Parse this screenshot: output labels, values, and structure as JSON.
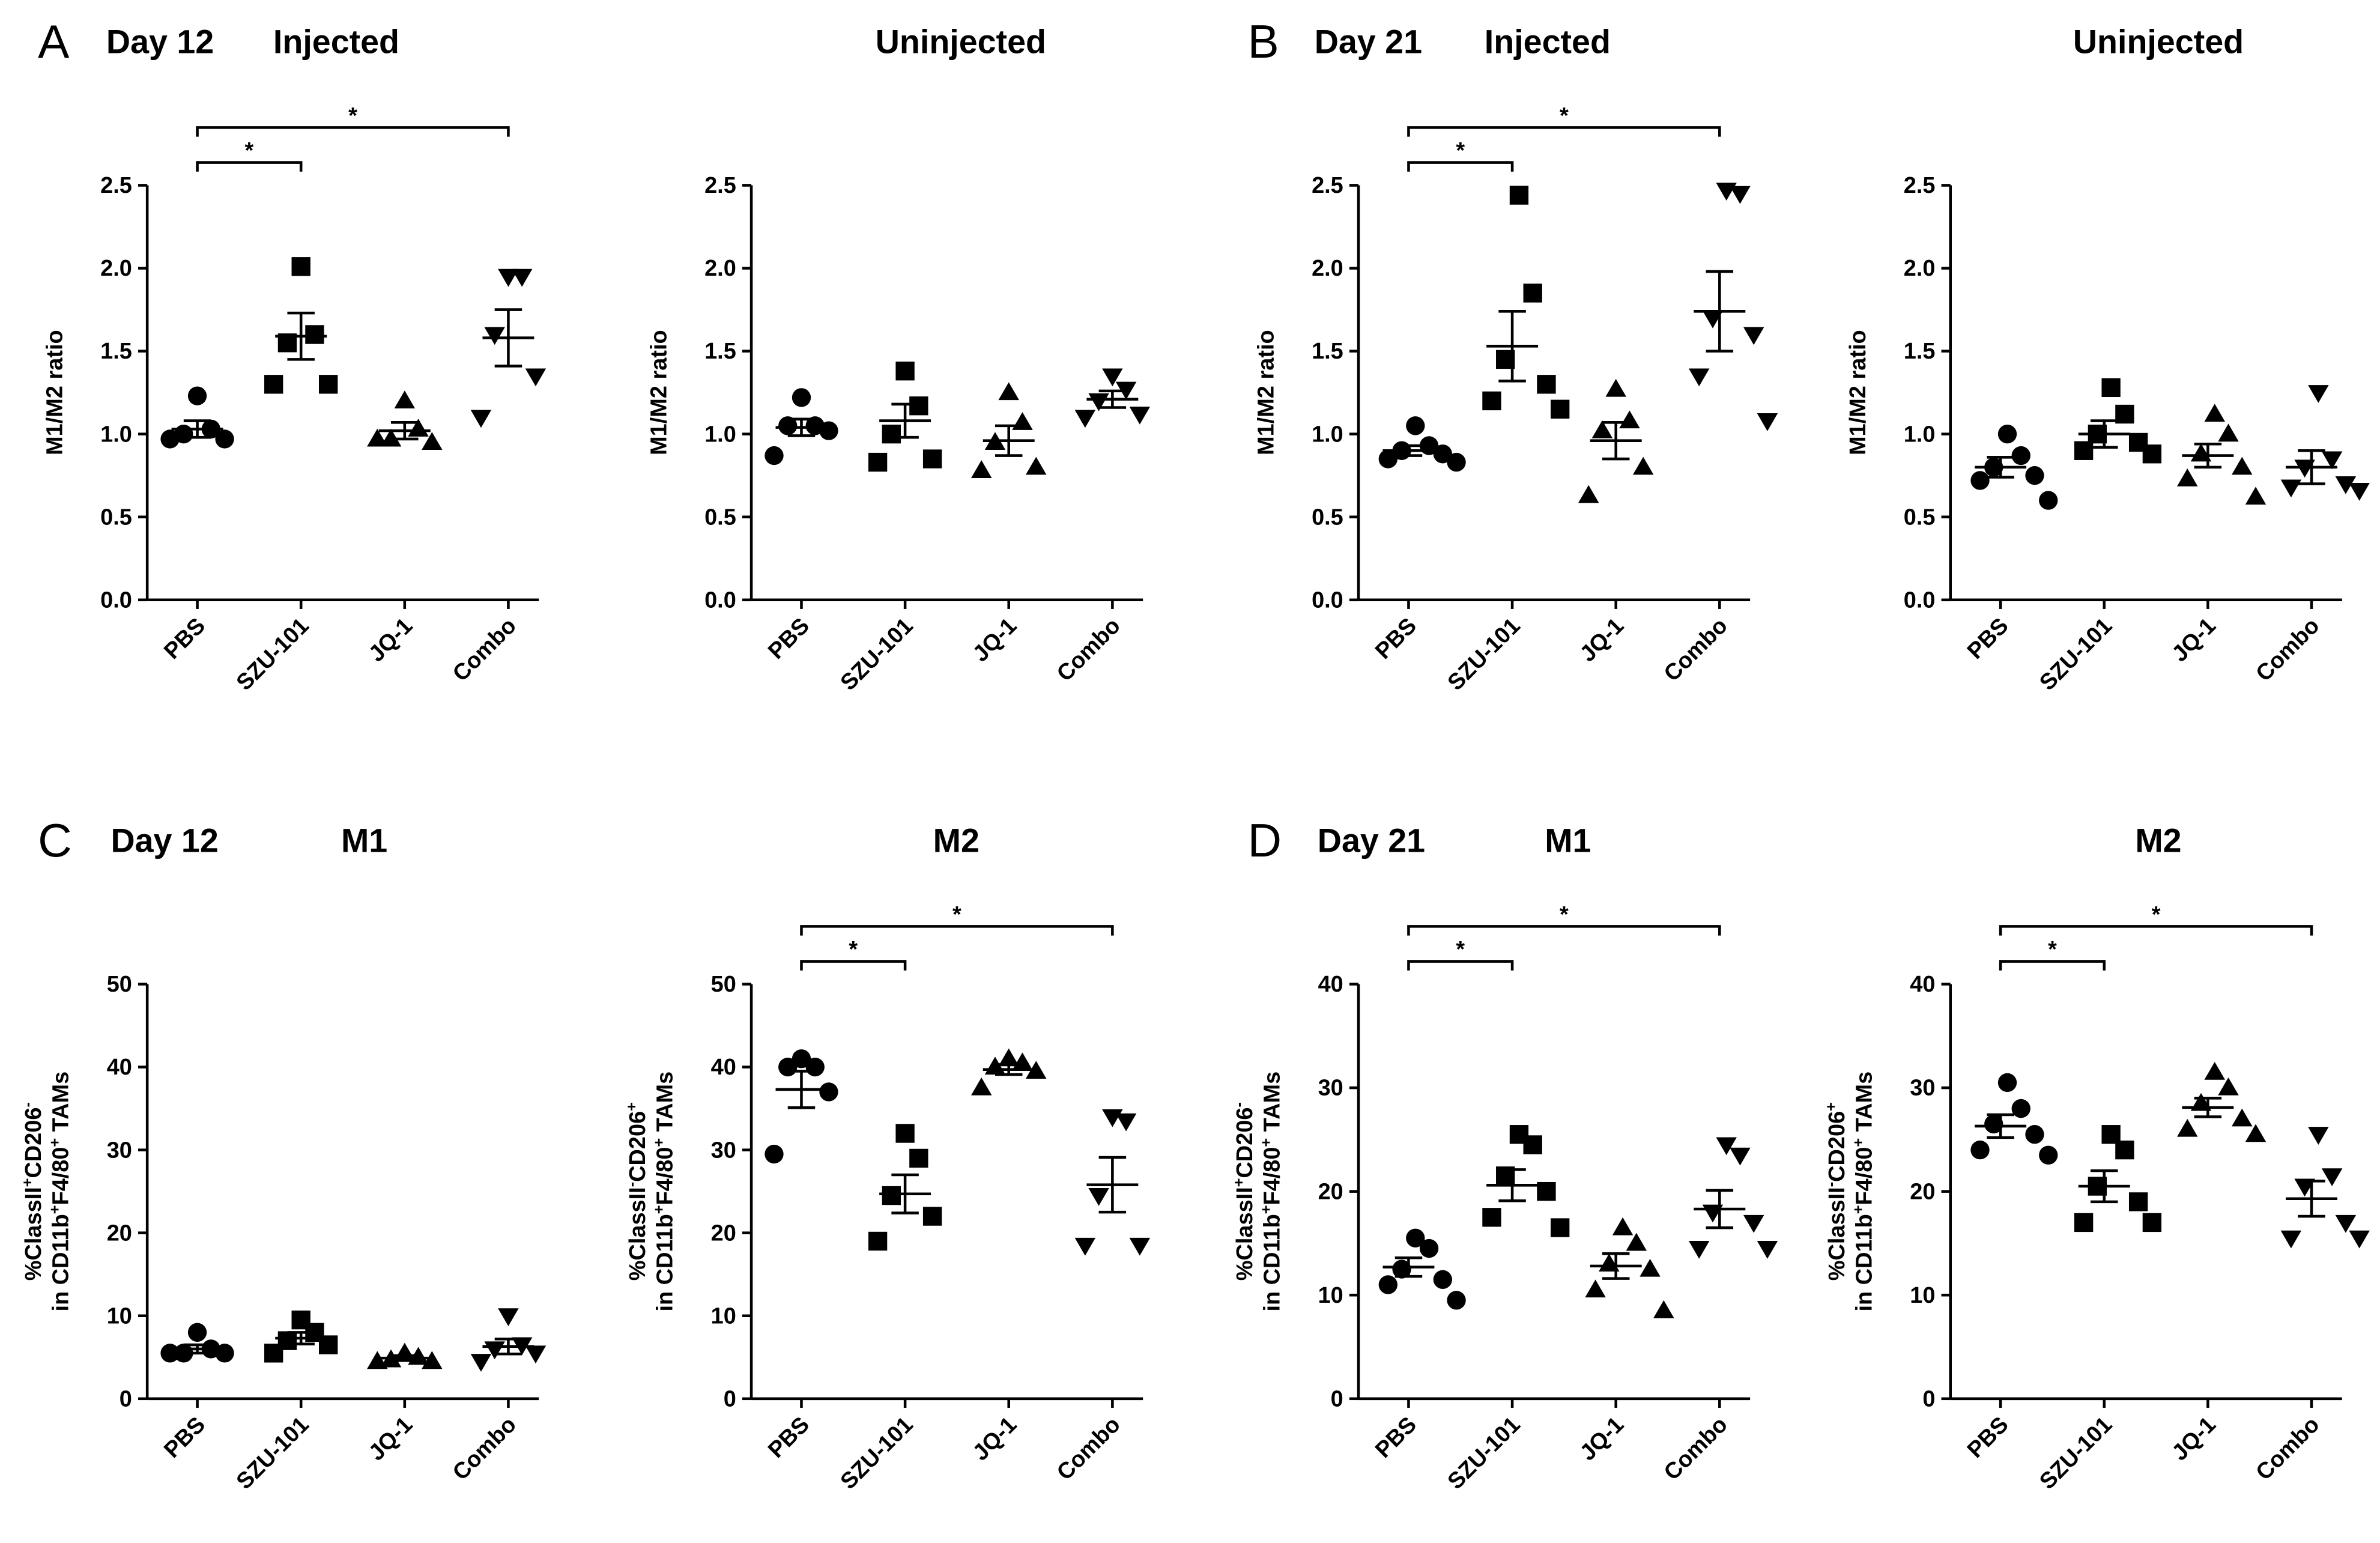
{
  "chart_data": [
    {
      "type": "dotplot",
      "panel": "A",
      "day": "Day 12",
      "title": "Injected",
      "ylabel": [
        [
          "M1/M2 ratio"
        ]
      ],
      "categories": [
        "PBS",
        "SZU-101",
        "JQ-1",
        "Combo"
      ],
      "markers": [
        "circle",
        "square",
        "triangle",
        "triangle-down"
      ],
      "color": "#000000",
      "values": [
        [
          1.23,
          1.03,
          1.0,
          0.97,
          0.97
        ],
        [
          2.01,
          1.6,
          1.55,
          1.3,
          1.3
        ],
        [
          1.2,
          1.03,
          0.97,
          0.95,
          0.97
        ],
        [
          1.95,
          1.95,
          1.6,
          1.35,
          1.1
        ]
      ],
      "means": [
        1.03,
        1.59,
        1.02,
        1.58
      ],
      "errors": [
        0.05,
        0.14,
        0.05,
        0.17
      ],
      "ylim": [
        0,
        2.5
      ],
      "yticks": [
        {
          "value": 0,
          "label": "0.0"
        },
        0.5,
        {
          "value": 1,
          "label": "1.0"
        },
        1.5,
        {
          "value": 2,
          "label": "2.0"
        },
        2.5
      ],
      "brackets": [
        {
          "from": 0,
          "to": 1,
          "label": "*"
        },
        {
          "from": 0,
          "to": 3,
          "label": "*"
        }
      ]
    },
    {
      "type": "dotplot",
      "title": "Uninjected",
      "ylabel": [
        [
          "M1/M2 ratio"
        ]
      ],
      "categories": [
        "PBS",
        "SZU-101",
        "JQ-1",
        "Combo"
      ],
      "markers": [
        "circle",
        "square",
        "triangle",
        "triangle-down"
      ],
      "color": "#000000",
      "values": [
        [
          1.22,
          1.05,
          1.05,
          1.02,
          0.87
        ],
        [
          1.38,
          1.17,
          1.0,
          0.85,
          0.83
        ],
        [
          1.25,
          1.07,
          0.95,
          0.8,
          0.78
        ],
        [
          1.35,
          1.27,
          1.2,
          1.12,
          1.1
        ]
      ],
      "means": [
        1.04,
        1.08,
        0.96,
        1.21
      ],
      "errors": [
        0.05,
        0.1,
        0.09,
        0.05
      ],
      "ylim": [
        0,
        2.5
      ],
      "yticks": [
        {
          "value": 0,
          "label": "0.0"
        },
        0.5,
        {
          "value": 1,
          "label": "1.0"
        },
        1.5,
        {
          "value": 2,
          "label": "2.0"
        },
        2.5
      ],
      "brackets": []
    },
    {
      "type": "dotplot",
      "panel": "B",
      "day": "Day 21",
      "title": "Injected",
      "ylabel": [
        [
          "M1/M2 ratio"
        ]
      ],
      "categories": [
        "PBS",
        "SZU-101",
        "JQ-1",
        "Combo"
      ],
      "markers": [
        "circle",
        "square",
        "triangle",
        "triangle-down"
      ],
      "color": "#000000",
      "values": [
        [
          1.05,
          0.93,
          0.9,
          0.88,
          0.85,
          0.83
        ],
        [
          2.44,
          1.85,
          1.45,
          1.3,
          1.2,
          1.15
        ],
        [
          1.27,
          1.08,
          1.02,
          0.8,
          0.63
        ],
        [
          2.47,
          2.45,
          1.7,
          1.6,
          1.35,
          1.08
        ]
      ],
      "means": [
        0.9,
        1.53,
        0.96,
        1.74
      ],
      "errors": [
        0.03,
        0.21,
        0.11,
        0.24
      ],
      "ylim": [
        0,
        2.5
      ],
      "yticks": [
        {
          "value": 0,
          "label": "0.0"
        },
        0.5,
        {
          "value": 1,
          "label": "1.0"
        },
        1.5,
        {
          "value": 2,
          "label": "2.0"
        },
        2.5
      ],
      "brackets": [
        {
          "from": 0,
          "to": 1,
          "label": "*"
        },
        {
          "from": 0,
          "to": 3,
          "label": "*"
        }
      ]
    },
    {
      "type": "dotplot",
      "title": "Uninjected",
      "ylabel": [
        [
          "M1/M2 ratio"
        ]
      ],
      "categories": [
        "PBS",
        "SZU-101",
        "JQ-1",
        "Combo"
      ],
      "markers": [
        "circle",
        "square",
        "triangle",
        "triangle-down"
      ],
      "color": "#000000",
      "values": [
        [
          1.0,
          0.87,
          0.8,
          0.75,
          0.72,
          0.6
        ],
        [
          1.28,
          1.12,
          1.0,
          0.95,
          0.9,
          0.88
        ],
        [
          1.12,
          1.0,
          0.88,
          0.8,
          0.73,
          0.62
        ],
        [
          1.25,
          0.85,
          0.8,
          0.7,
          0.68,
          0.66
        ]
      ],
      "means": [
        0.8,
        1.0,
        0.87,
        0.8
      ],
      "errors": [
        0.06,
        0.08,
        0.07,
        0.1
      ],
      "ylim": [
        0,
        2.5
      ],
      "yticks": [
        {
          "value": 0,
          "label": "0.0"
        },
        0.5,
        {
          "value": 1,
          "label": "1.0"
        },
        1.5,
        {
          "value": 2,
          "label": "2.0"
        },
        2.5
      ],
      "brackets": []
    },
    {
      "type": "dotplot",
      "panel": "C",
      "day": "Day 12",
      "title": "M1",
      "ylabel": [
        [
          "%ClassII",
          "+",
          "CD206",
          "-"
        ],
        [
          "in CD11b",
          "+",
          "F4/80",
          "+",
          " TAMs"
        ]
      ],
      "categories": [
        "PBS",
        "SZU-101",
        "JQ-1",
        "Combo"
      ],
      "markers": [
        "circle",
        "square",
        "triangle",
        "triangle-down"
      ],
      "color": "#000000",
      "values": [
        [
          8,
          6,
          5.5,
          5.5,
          5.5
        ],
        [
          9.5,
          8,
          7,
          6.5,
          5.5
        ],
        [
          5.5,
          5,
          4.7,
          4.5,
          4.5
        ],
        [
          10,
          6.5,
          6,
          5.5,
          4.5
        ]
      ],
      "means": [
        6,
        7.3,
        4.9,
        6.3
      ],
      "errors": [
        0.5,
        0.7,
        0.3,
        0.9
      ],
      "ylim": [
        0,
        50
      ],
      "yticks": [
        0,
        10,
        20,
        30,
        40,
        50
      ],
      "brackets": []
    },
    {
      "type": "dotplot",
      "title": "M2",
      "ylabel": [
        [
          "%ClassII",
          "-",
          "CD206",
          "+"
        ],
        [
          "in CD11b",
          "+",
          "F4/80",
          "+",
          " TAMs"
        ]
      ],
      "categories": [
        "PBS",
        "SZU-101",
        "JQ-1",
        "Combo"
      ],
      "markers": [
        "circle",
        "square",
        "triangle",
        "triangle-down"
      ],
      "color": "#000000",
      "values": [
        [
          41,
          40,
          40,
          37,
          29.5
        ],
        [
          32,
          29,
          24.5,
          22,
          19
        ],
        [
          41,
          40.5,
          40,
          39.5,
          37.5
        ],
        [
          34,
          33.5,
          24.5,
          18.5,
          18.5
        ]
      ],
      "means": [
        37.3,
        24.7,
        39.7,
        25.8
      ],
      "errors": [
        2.2,
        2.3,
        0.6,
        3.3
      ],
      "ylim": [
        0,
        50
      ],
      "yticks": [
        0,
        10,
        20,
        30,
        40,
        50
      ],
      "brackets": [
        {
          "from": 0,
          "to": 1,
          "label": "*"
        },
        {
          "from": 0,
          "to": 3,
          "label": "*"
        }
      ]
    },
    {
      "type": "dotplot",
      "panel": "D",
      "day": "Day 21",
      "title": "M1",
      "ylabel": [
        [
          "%ClassII",
          "+",
          "CD206",
          "-"
        ],
        [
          "in CD11b",
          "+",
          "F4/80",
          "+",
          " TAMs"
        ]
      ],
      "categories": [
        "PBS",
        "SZU-101",
        "JQ-1",
        "Combo"
      ],
      "markers": [
        "circle",
        "square",
        "triangle",
        "triangle-down"
      ],
      "color": "#000000",
      "values": [
        [
          15.5,
          14.5,
          12.5,
          11.5,
          11,
          9.5
        ],
        [
          25.5,
          24.5,
          21.5,
          20,
          17.5,
          16.5
        ],
        [
          16.5,
          15,
          13,
          12.5,
          10.5,
          8.5
        ],
        [
          24.5,
          23.5,
          18,
          17,
          14.5,
          14.5
        ]
      ],
      "means": [
        12.7,
        20.6,
        12.8,
        18.3
      ],
      "errors": [
        0.9,
        1.5,
        1.2,
        1.8
      ],
      "ylim": [
        0,
        40
      ],
      "yticks": [
        0,
        10,
        20,
        30,
        40
      ],
      "brackets": [
        {
          "from": 0,
          "to": 1,
          "label": "*"
        },
        {
          "from": 0,
          "to": 3,
          "label": "*"
        }
      ]
    },
    {
      "type": "dotplot",
      "title": "M2",
      "ylabel": [
        [
          "%ClassII",
          "-",
          "CD206",
          "+"
        ],
        [
          "in CD11b",
          "+",
          "F4/80",
          "+",
          " TAMs"
        ]
      ],
      "categories": [
        "PBS",
        "SZU-101",
        "JQ-1",
        "Combo"
      ],
      "markers": [
        "circle",
        "square",
        "triangle",
        "triangle-down"
      ],
      "color": "#000000",
      "values": [
        [
          30.5,
          28,
          26.5,
          25.5,
          24,
          23.5
        ],
        [
          25.5,
          24,
          20.5,
          19,
          17,
          17
        ],
        [
          31.5,
          30,
          28.5,
          27,
          26,
          25.5
        ],
        [
          25.5,
          21.5,
          20.5,
          17,
          15.5,
          15.5
        ]
      ],
      "means": [
        26.3,
        20.5,
        28.1,
        19.3
      ],
      "errors": [
        1.1,
        1.5,
        0.9,
        1.7
      ],
      "ylim": [
        0,
        40
      ],
      "yticks": [
        0,
        10,
        20,
        30,
        40
      ],
      "brackets": [
        {
          "from": 0,
          "to": 1,
          "label": "*"
        },
        {
          "from": 0,
          "to": 3,
          "label": "*"
        }
      ]
    }
  ]
}
